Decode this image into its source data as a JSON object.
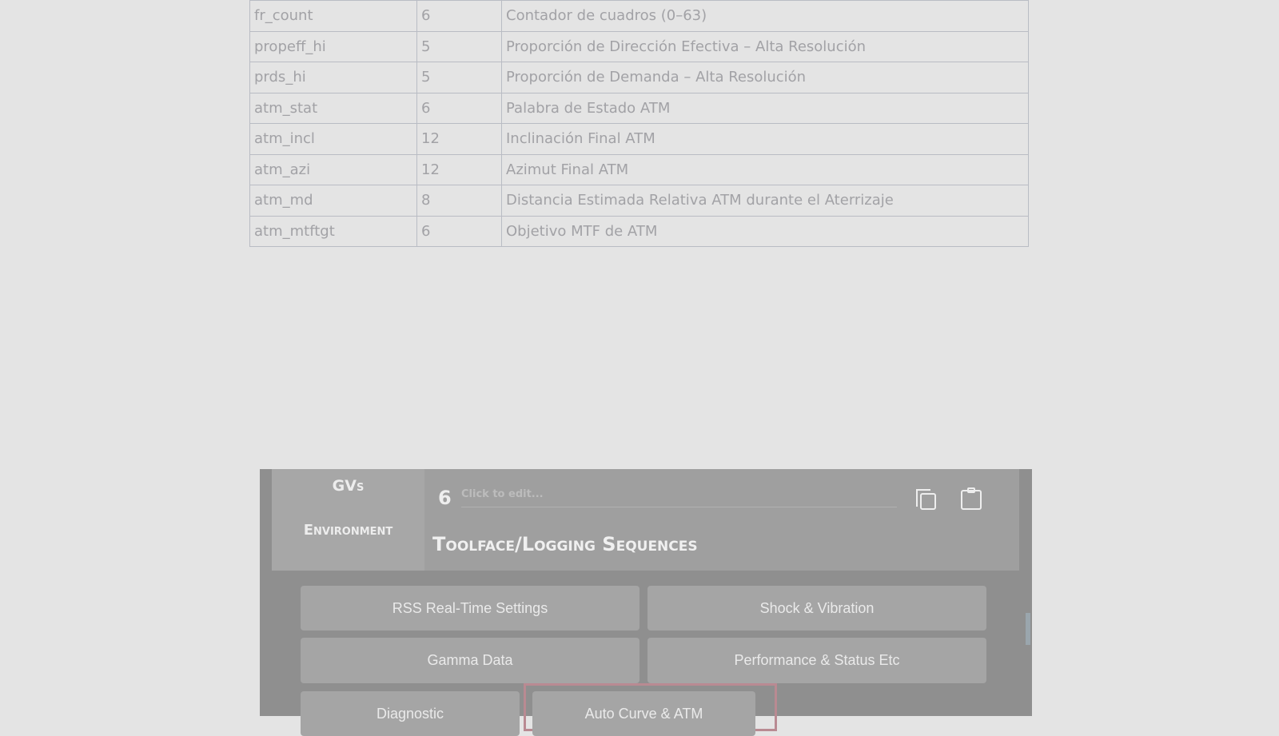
{
  "table": {
    "rows": [
      [
        "fr_count",
        "6",
        "Contador de cuadros (0–63)"
      ],
      [
        "propeff_hi",
        "5",
        "Proporción de Dirección Efectiva – Alta Resolución"
      ],
      [
        "prds_hi",
        "5",
        "Proporción de Demanda – Alta Resolución"
      ],
      [
        "atm_stat",
        "6",
        "Palabra de Estado ATM"
      ],
      [
        "atm_incl",
        "12",
        "Inclinación Final ATM"
      ],
      [
        "atm_azi",
        "12",
        "Azimut Final ATM"
      ],
      [
        "atm_md",
        "8",
        "Distancia Estimada Relativa ATM durante el Aterrizaje"
      ],
      [
        "atm_mtftgt",
        "6",
        "Objetivo MTF de ATM"
      ]
    ]
  },
  "panel": {
    "sidebar": [
      "GVs",
      "Environment"
    ],
    "sequence_number": "6",
    "sequence_placeholder": "Click to edit...",
    "section_title": "Toolface/Logging Sequences",
    "icons": [
      "copy-icon",
      "clipboard-icon"
    ],
    "buttons": [
      "RSS Real-Time Settings",
      "Shock & Vibration",
      "Gamma Data",
      "Performance & Status Etc",
      "Diagnostic",
      "Auto Curve & ATM"
    ],
    "highlight_color": "#b98a92"
  }
}
